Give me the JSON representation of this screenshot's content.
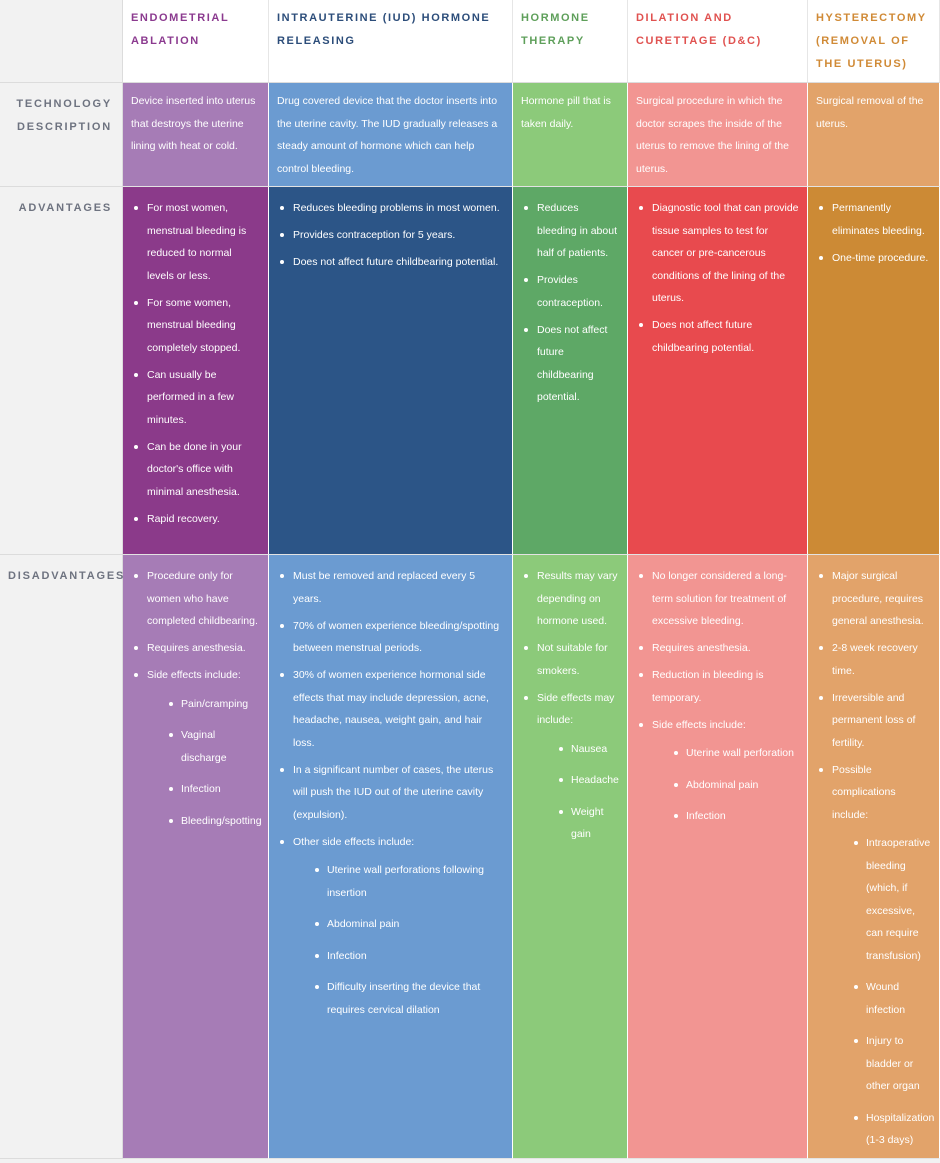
{
  "colors": {
    "ablation": {
      "head": "#8b3a8f",
      "light": "#a67cb6",
      "dark": "#8b3a8a"
    },
    "iud": {
      "head": "#2c4d7a",
      "light": "#6b9bd1",
      "dark": "#2c5587"
    },
    "hormone": {
      "head": "#5e9f5a",
      "light": "#8cca7a",
      "dark": "#5ea866"
    },
    "dc": {
      "head": "#e05250",
      "light": "#f29592",
      "dark": "#e84a4e"
    },
    "hyst": {
      "head": "#d08a36",
      "light": "#e2a36a",
      "dark": "#cc8a35"
    }
  },
  "row_headers": {
    "technology": "TECHNOLOGY DESCRIPTION",
    "advantages": "ADVANTAGES",
    "disadvantages": "DISADVANTAGES"
  },
  "columns": [
    {
      "key": "ablation",
      "title": "ENDOMETRIAL ABLATION",
      "description": "Device inserted into uterus that destroys the uterine lining with heat or cold.",
      "advantages": [
        {
          "text": "For most women, menstrual bleeding is reduced to normal levels or less."
        },
        {
          "text": "For some women, menstrual bleeding completely stopped."
        },
        {
          "text": "Can usually be performed in a few minutes."
        },
        {
          "text": "Can be done in your doctor's office with minimal anesthesia."
        },
        {
          "text": "Rapid recovery."
        }
      ],
      "disadvantages": [
        {
          "text": "Procedure only for women who have completed childbearing."
        },
        {
          "text": "Requires anesthesia."
        },
        {
          "text": "Side effects include:",
          "sub": [
            "Pain/cramping",
            "Vaginal discharge",
            "Infection",
            "Bleeding/spotting"
          ]
        }
      ]
    },
    {
      "key": "iud",
      "title": "INTRAUTERINE (IUD) HORMONE RELEASING",
      "description": "Drug covered device that the doctor inserts into the uterine cavity. The IUD gradually releases a steady amount of hormone which can help control bleeding.",
      "advantages": [
        {
          "text": "Reduces bleeding problems in most women."
        },
        {
          "text": "Provides contraception for 5 years."
        },
        {
          "text": "Does not affect future childbearing potential."
        }
      ],
      "disadvantages": [
        {
          "text": "Must be removed and replaced every 5 years."
        },
        {
          "text": "70% of women experience bleeding/spotting between menstrual periods."
        },
        {
          "text": "30% of women experience hormonal side effects that may include depression, acne, headache, nausea, weight gain, and hair loss."
        },
        {
          "text": "In a significant number of cases, the uterus will push the IUD out of the uterine cavity (expulsion)."
        },
        {
          "text": "Other side effects include:",
          "sub": [
            "Uterine wall perforations following insertion",
            "Abdominal pain",
            "Infection",
            "Difficulty inserting the device that requires cervical dilation"
          ]
        }
      ]
    },
    {
      "key": "hormone",
      "title": "HORMONE THERAPY",
      "description": "Hormone pill that is taken daily.",
      "advantages": [
        {
          "text": "Reduces bleeding in about half of patients."
        },
        {
          "text": "Provides contraception."
        },
        {
          "text": "Does not affect future childbearing potential."
        }
      ],
      "disadvantages": [
        {
          "text": "Results may vary depending on hormone used."
        },
        {
          "text": "Not suitable for smokers."
        },
        {
          "text": "Side effects may include:",
          "sub": [
            "Nausea",
            "Headache",
            "Weight gain"
          ]
        }
      ]
    },
    {
      "key": "dc",
      "title": "DILATION AND CURETTAGE (D&C)",
      "description": "Surgical procedure in which the doctor scrapes the inside of the uterus to remove the lining of the uterus.",
      "advantages": [
        {
          "text": "Diagnostic tool that can provide tissue samples to test for cancer or pre-cancerous conditions of the lining of the uterus."
        },
        {
          "text": "Does not affect future childbearing potential."
        }
      ],
      "disadvantages": [
        {
          "text": "No longer considered a long-term solution for treatment of excessive bleeding."
        },
        {
          "text": "Requires anesthesia."
        },
        {
          "text": "Reduction in bleeding is temporary."
        },
        {
          "text": "Side effects include:",
          "sub": [
            "Uterine wall perforation",
            "Abdominal pain",
            "Infection"
          ]
        }
      ]
    },
    {
      "key": "hyst",
      "title": "HYSTERECTOMY (REMOVAL OF THE UTERUS)",
      "description": "Surgical removal of the uterus.",
      "advantages": [
        {
          "text": "Permanently eliminates bleeding."
        },
        {
          "text": "One-time procedure."
        }
      ],
      "disadvantages": [
        {
          "text": "Major surgical procedure, requires general anesthesia."
        },
        {
          "text": "2-8 week recovery time."
        },
        {
          "text": "Irreversible and permanent loss of fertility."
        },
        {
          "text": "Possible complications include:",
          "sub": [
            "Intraoperative bleeding (which, if excessive, can require transfusion)",
            "Wound infection",
            "Injury to bladder or other organ",
            "Hospitalization (1-3 days)"
          ]
        }
      ]
    }
  ]
}
